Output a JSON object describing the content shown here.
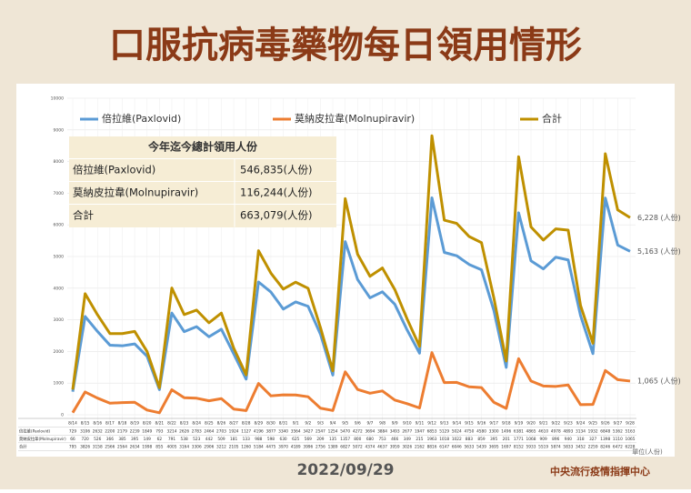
{
  "chart_data": {
    "type": "line",
    "title": "口服抗病毒藥物每日領用情形",
    "categories": [
      "8/14",
      "8/15",
      "8/16",
      "8/17",
      "8/18",
      "8/19",
      "8/20",
      "8/21",
      "8/22",
      "8/23",
      "8/24",
      "8/25",
      "8/26",
      "8/27",
      "8/28",
      "8/29",
      "8/30",
      "8/31",
      "9/1",
      "9/2",
      "9/3",
      "9/4",
      "9/5",
      "9/6",
      "9/7",
      "9/8",
      "9/9",
      "9/10",
      "9/11",
      "9/12",
      "9/13",
      "9/14",
      "9/15",
      "9/16",
      "9/17",
      "9/18",
      "9/19",
      "9/20",
      "9/21",
      "9/22",
      "9/23",
      "9/24",
      "9/25",
      "9/26",
      "9/27",
      "9/28"
    ],
    "series": [
      {
        "name": "倍拉維(Paxlovid)",
        "color": "#5b9bd5",
        "end_label": "5,163 (人份)",
        "values": [
          729,
          3106,
          2632,
          2200,
          2179,
          2239,
          1849,
          793,
          3214,
          2626,
          2783,
          2464,
          2703,
          1924,
          1127,
          4196,
          3877,
          3340,
          3564,
          3427,
          2547,
          1254,
          5470,
          4272,
          3694,
          3884,
          3493,
          2677,
          1947,
          6853,
          5129,
          5024,
          4750,
          4580,
          3300,
          1496,
          6381,
          4865,
          4610,
          4978,
          4893,
          3134,
          1932,
          6848,
          5362,
          5163
        ]
      },
      {
        "name": "莫納皮拉韋(Molnupiravir)",
        "color": "#ed7d31",
        "end_label": "1,065 (人份)",
        "values": [
          66,
          720,
          526,
          366,
          385,
          395,
          149,
          62,
          791,
          538,
          523,
          442,
          509,
          181,
          133,
          988,
          598,
          630,
          625,
          569,
          209,
          135,
          1357,
          800,
          680,
          753,
          466,
          349,
          215,
          1963,
          1018,
          1022,
          883,
          859,
          395,
          201,
          1771,
          1068,
          909,
          896,
          940,
          318,
          327,
          1398,
          1110,
          1065
        ]
      },
      {
        "name": "合計",
        "color": "#bf9000",
        "end_label": "6,228 (人份)",
        "values": [
          795,
          3826,
          3158,
          2566,
          2564,
          2634,
          1998,
          855,
          4005,
          3164,
          3306,
          2906,
          3212,
          2105,
          1260,
          5184,
          4475,
          3970,
          4189,
          3996,
          2756,
          1389,
          6827,
          5072,
          4374,
          4637,
          3959,
          3026,
          2162,
          8816,
          6147,
          6046,
          5633,
          5439,
          3695,
          1697,
          8152,
          5933,
          5519,
          5874,
          5833,
          3452,
          2259,
          8246,
          6472,
          6228
        ]
      }
    ],
    "ylim": [
      0,
      10000
    ],
    "yticks": [
      0,
      1000,
      2000,
      3000,
      4000,
      5000,
      6000,
      7000,
      8000,
      9000,
      10000
    ],
    "grid": true,
    "summary_table": {
      "title": "今年迄今總計領用人份",
      "rows": [
        [
          "倍拉維(Paxlovid)",
          "546,835(人份)"
        ],
        [
          "莫納皮拉韋(Molnupiravir)",
          "116,244(人份)"
        ],
        [
          "合計",
          "663,079(人份)"
        ]
      ]
    },
    "unit": "單位(人份)",
    "date": "2022/09/29",
    "source": "中央流行疫情指揮中心"
  }
}
